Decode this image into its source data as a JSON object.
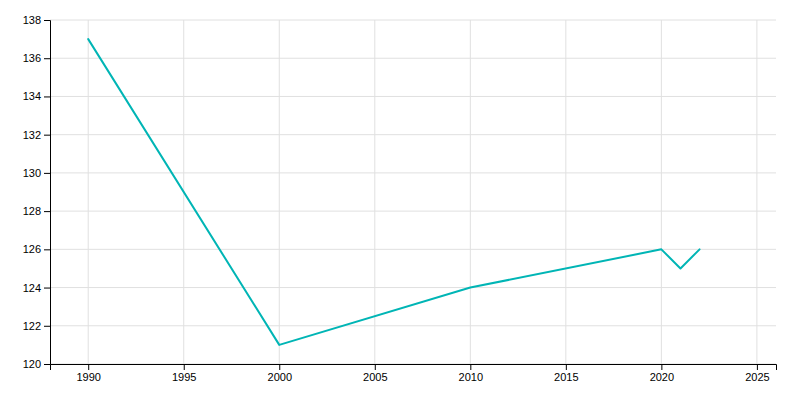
{
  "chart_data": {
    "type": "line",
    "x": [
      1990,
      2000,
      2010,
      2020,
      2021,
      2022
    ],
    "values": [
      137,
      121,
      124,
      126,
      125,
      126
    ],
    "color": "#00b5b5",
    "xlim": [
      1988,
      2026
    ],
    "xticks": [
      1990,
      1995,
      2000,
      2005,
      2010,
      2015,
      2020,
      2025
    ],
    "ylim": [
      120,
      138
    ],
    "yticks": [
      120,
      122,
      124,
      126,
      128,
      130,
      132,
      134,
      136,
      138
    ],
    "grid": true
  }
}
